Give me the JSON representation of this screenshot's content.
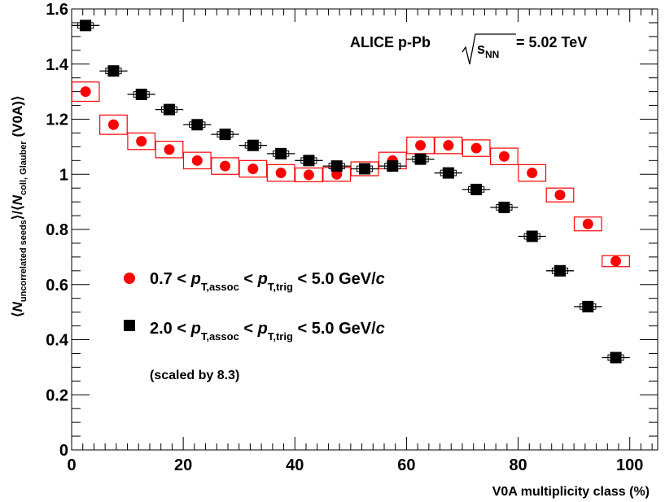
{
  "chart_data": {
    "type": "scatter",
    "xlabel": "V0A multiplicity class (%)",
    "ylabel": "⟨N_uncorrelated seeds⟩/⟨N_coll, Glauber (V0A)⟩",
    "xlim": [
      0,
      105
    ],
    "ylim": [
      0,
      1.6
    ],
    "x_ticks": [
      0,
      20,
      40,
      60,
      80,
      100
    ],
    "y_ticks": [
      0,
      0.2,
      0.4,
      0.6,
      0.8,
      1,
      1.2,
      1.4,
      1.6
    ],
    "annotation": "ALICE p-Pb √s_NN = 5.02 TeV",
    "note": "(scaled by 8.3)",
    "series": [
      {
        "name": "0.7 < p_T,assoc < p_T,trig < 5.0 GeV/c",
        "marker": "circle",
        "color": "#ff0000",
        "x": [
          2.5,
          7.5,
          12.5,
          17.5,
          22.5,
          27.5,
          32.5,
          37.5,
          42.5,
          47.5,
          52.5,
          57.5,
          62.5,
          67.5,
          72.5,
          77.5,
          82.5,
          87.5,
          92.5,
          97.5
        ],
        "y": [
          1.3,
          1.18,
          1.12,
          1.09,
          1.05,
          1.03,
          1.02,
          1.005,
          0.998,
          1.0,
          1.02,
          1.05,
          1.105,
          1.105,
          1.095,
          1.065,
          1.005,
          0.925,
          0.82,
          0.685
        ],
        "syst": [
          0.035,
          0.035,
          0.03,
          0.03,
          0.03,
          0.03,
          0.03,
          0.03,
          0.025,
          0.025,
          0.025,
          0.03,
          0.03,
          0.03,
          0.03,
          0.03,
          0.03,
          0.025,
          0.025,
          0.02
        ]
      },
      {
        "name": "2.0 < p_T,assoc < p_T,trig < 5.0 GeV/c",
        "marker": "square",
        "color": "#000000",
        "x": [
          2.5,
          7.5,
          12.5,
          17.5,
          22.5,
          27.5,
          32.5,
          37.5,
          42.5,
          47.5,
          52.5,
          57.5,
          62.5,
          67.5,
          72.5,
          77.5,
          82.5,
          87.5,
          92.5,
          97.5
        ],
        "y": [
          1.54,
          1.375,
          1.29,
          1.235,
          1.18,
          1.145,
          1.105,
          1.075,
          1.05,
          1.03,
          1.02,
          1.03,
          1.055,
          1.005,
          0.945,
          0.88,
          0.775,
          0.65,
          0.52,
          0.335
        ],
        "syst": [
          0.01,
          0.01,
          0.01,
          0.01,
          0.01,
          0.01,
          0.01,
          0.01,
          0.01,
          0.01,
          0.01,
          0.01,
          0.01,
          0.01,
          0.01,
          0.01,
          0.01,
          0.01,
          0.01,
          0.01
        ]
      }
    ]
  },
  "labels": {
    "exp": "ALICE p-Pb",
    "energy": " = 5.02 TeV",
    "xtitle": "V0A multiplicity class (%)",
    "note": "(scaled by 8.3)",
    "leg1_a": "0.7 <",
    "leg2_a": "2.0 <",
    "leg_lt": "<",
    "leg_b": "< 5.0 GeV/"
  }
}
